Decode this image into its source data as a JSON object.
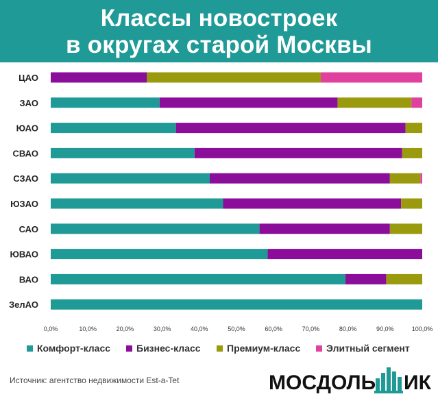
{
  "header": {
    "title_line1": "Классы новостроек",
    "title_line2": "в округах старой Москвы",
    "band_color": "#1f9a96"
  },
  "chart_data": {
    "type": "bar",
    "orientation": "horizontal",
    "stacked": "percent",
    "title": "Классы новостроек в округах старой Москвы",
    "categories": [
      "ЦАО",
      "ЗАО",
      "ЮАО",
      "СВАО",
      "СЗАО",
      "ЮЗАО",
      "САО",
      "ЮВАО",
      "ВАО",
      "ЗелАО"
    ],
    "series": [
      {
        "name": "Комфорт-класс",
        "color": "#1f9a96",
        "values": [
          0,
          29.3,
          33.7,
          38.7,
          42.8,
          46.4,
          56.2,
          58.4,
          79.3,
          100
        ]
      },
      {
        "name": "Бизнес-класс",
        "color": "#8b0e9a",
        "values": [
          25.9,
          47.9,
          61.8,
          55.9,
          48.5,
          47.9,
          35.1,
          41.6,
          11.0,
          0
        ]
      },
      {
        "name": "Премиум-класс",
        "color": "#9a9a0e",
        "values": [
          46.8,
          19.9,
          4.5,
          5.4,
          8.2,
          5.7,
          8.7,
          0,
          9.7,
          0
        ]
      },
      {
        "name": "Элитный сегмент",
        "color": "#e0409e",
        "values": [
          27.3,
          2.9,
          0,
          0,
          0.5,
          0,
          0,
          0,
          0,
          0
        ]
      }
    ],
    "xlim": [
      0,
      100
    ],
    "x_ticks": [
      "0,0%",
      "10,0%",
      "20,0%",
      "30,0%",
      "40,0%",
      "50,0%",
      "60,0%",
      "70,0%",
      "80,0%",
      "90,0%",
      "100,0%"
    ],
    "grid": false,
    "legend_position": "bottom"
  },
  "footer": {
    "source": "Источник: агентство недвижимости Est-a-Tet",
    "logo_text_left": "МОСДОЛЬ",
    "logo_text_right": "ИК"
  }
}
